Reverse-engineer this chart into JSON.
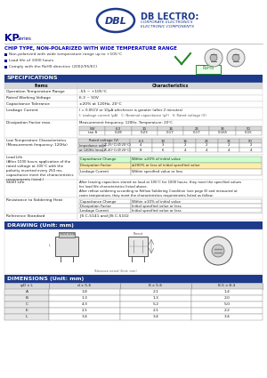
{
  "blue_header": "#1e3a8a",
  "blue_text": "#0000bb",
  "blue_dark": "#00008b",
  "blue_light": "#6699cc",
  "text_color": "#222222",
  "bg_white": "#ffffff",
  "spec_header_bg": "#c8d8f0",
  "df_headers": [
    "WV",
    "6.3",
    "10",
    "16",
    "25",
    "35",
    "50"
  ],
  "df_row": [
    "tan δ",
    "0.28",
    "0.23",
    "0.17",
    "0.17",
    "0.165",
    "0.15"
  ],
  "lt_headers": [
    "6.3",
    "10",
    "16",
    "25",
    "35",
    "50"
  ],
  "lt_rows": [
    [
      "Impedance ratio",
      "Z(-25°C)/Z(20°C)",
      "4",
      "3",
      "2",
      "2",
      "2",
      "2"
    ],
    [
      "at 120Hz (max.)",
      "Z(-40°C)/Z(20°C)",
      "8",
      "6",
      "4",
      "4",
      "4",
      "4"
    ]
  ],
  "ll_rows": [
    [
      "Capacitance Change",
      "Within ±20% of initial value"
    ],
    [
      "Dissipation Factor",
      "≤200% or less of initial specified value"
    ],
    [
      "Leakage Current",
      "Within specified value or less"
    ]
  ],
  "rsh_rows": [
    [
      "Capacitance Change",
      "Within ±10% of initial value"
    ],
    [
      "Dissipation Factor",
      "Initial specified value or less"
    ],
    [
      "Leakage Current",
      "Initial specified value or less"
    ]
  ],
  "dim_headers": [
    "φD x L",
    "d x 5.6",
    "8 x 5.6",
    "8.5 x 8.4"
  ],
  "dim_rows": [
    [
      "A",
      "1.8",
      "2.1",
      "1.4"
    ],
    [
      "B",
      "1.3",
      "1.3",
      "2.0"
    ],
    [
      "C",
      "4.3",
      "5.2",
      "5.0"
    ],
    [
      "E",
      "2.1",
      "2.1",
      "2.2"
    ],
    [
      "L",
      "3.4",
      "3.4",
      "3.4"
    ]
  ]
}
